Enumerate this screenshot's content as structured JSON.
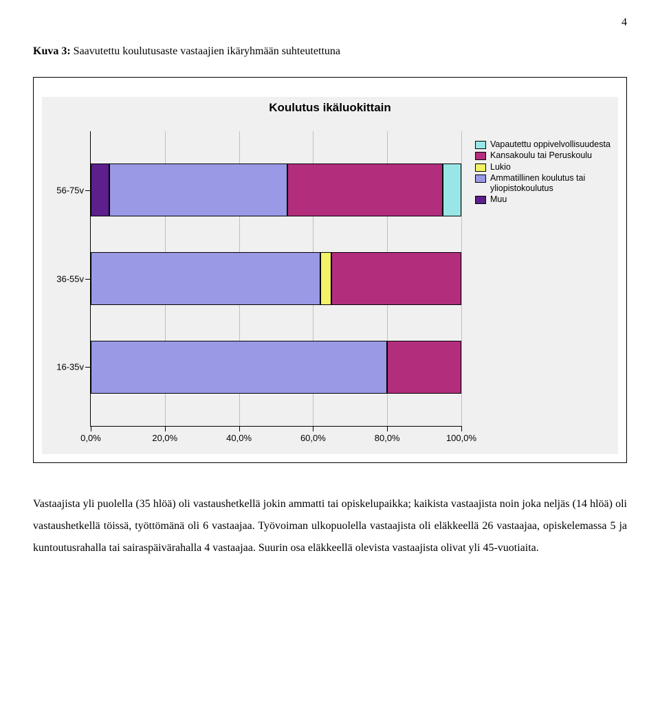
{
  "page_number": "4",
  "caption": {
    "bold": "Kuva 3:",
    "rest": " Saavutettu koulutusaste vastaajien ikäryhmään suhteutettuna"
  },
  "chart": {
    "type": "stacked-bar-horizontal",
    "title": "Koulutus ikäluokittain",
    "background_color": "#f0f0f0",
    "plot_bg": "#f0f0f0",
    "grid_color": "#bfbfbf",
    "axis_color": "#000000",
    "title_fontsize": 17,
    "label_fontsize": 13,
    "legend_fontsize": 12.5,
    "xlim": [
      0,
      100
    ],
    "xticks": [
      0,
      20,
      40,
      60,
      80,
      100
    ],
    "xtick_labels": [
      "0,0%",
      "20,0%",
      "40,0%",
      "60,0%",
      "80,0%",
      "100,0%"
    ],
    "categories": [
      "56-75v",
      "36-55v",
      "16-35v"
    ],
    "bar_height_pct": 18,
    "bar_gap_pct": 12,
    "legend": [
      {
        "label": "Vapautettu oppivelvollisuudesta",
        "color": "#99e6e6"
      },
      {
        "label": "Kansakoulu tai Peruskoulu",
        "color": "#b32d7d"
      },
      {
        "label": "Lukio",
        "color": "#f2f266"
      },
      {
        "label": "Ammatillinen koulutus tai yliopistokoulutus",
        "color": "#9999e6"
      },
      {
        "label": "Muu",
        "color": "#5c1f8c"
      }
    ],
    "series_order": [
      "Muu",
      "Ammatillinen koulutus tai yliopistokoulutus",
      "Lukio",
      "Kansakoulu tai Peruskoulu",
      "Vapautettu oppivelvollisuudesta"
    ],
    "series_colors": {
      "Vapautettu oppivelvollisuudesta": "#99e6e6",
      "Kansakoulu tai Peruskoulu": "#b32d7d",
      "Lukio": "#f2f266",
      "Ammatillinen koulutus tai yliopistokoulutus": "#9999e6",
      "Muu": "#5c1f8c"
    },
    "data": {
      "56-75v": {
        "Muu": 5,
        "Ammatillinen koulutus tai yliopistokoulutus": 48,
        "Lukio": 0,
        "Kansakoulu tai Peruskoulu": 42,
        "Vapautettu oppivelvollisuudesta": 5
      },
      "36-55v": {
        "Muu": 0,
        "Ammatillinen koulutus tai yliopistokoulutus": 62,
        "Lukio": 3,
        "Kansakoulu tai Peruskoulu": 35,
        "Vapautettu oppivelvollisuudesta": 0
      },
      "16-35v": {
        "Muu": 0,
        "Ammatillinen koulutus tai yliopistokoulutus": 80,
        "Lukio": 0,
        "Kansakoulu tai Peruskoulu": 20,
        "Vapautettu oppivelvollisuudesta": 0
      }
    }
  },
  "body_text": "Vastaajista yli puolella (35 hlöä) oli vastaushetkellä jokin ammatti tai opiskelupaikka; kaikista vastaajista noin joka neljäs (14 hlöä) oli vastaushetkellä töissä, työttömänä oli 6 vastaajaa. Työvoiman ulkopuolella vastaajista oli eläkkeellä 26 vastaajaa, opiskelemassa 5 ja kuntoutusrahalla tai sairaspäivärahalla 4 vastaajaa. Suurin osa eläkkeellä olevista vastaajista olivat yli 45-vuotiaita."
}
